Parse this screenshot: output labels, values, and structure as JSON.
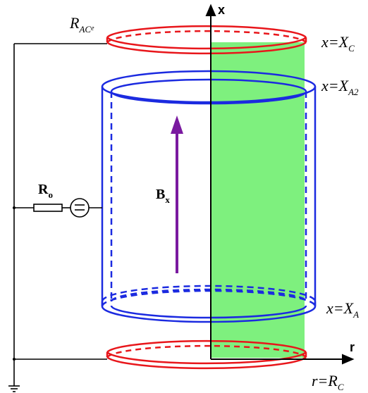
{
  "labels": {
    "top_ring": "R",
    "top_ring_sub": "AC",
    "top_ring_subsub": "e",
    "x_axis": "x",
    "r_axis": "r",
    "x_c": "x=X",
    "x_c_sub": "C",
    "x_a2": "x=X",
    "x_a2_sub": "A2",
    "x_a": "x=X",
    "x_a_sub": "A",
    "r_c": "r=R",
    "r_c_sub": "C",
    "resistor": "R",
    "resistor_sub": "o",
    "field": "B",
    "field_sub": "x",
    "source_symbol": "="
  },
  "colors": {
    "electrode_ring": "#e8161b",
    "cylinder": "#1b2ae0",
    "green_region": "#7ef07e",
    "field_arrow": "#7a1aa0",
    "wire": "#000000"
  }
}
